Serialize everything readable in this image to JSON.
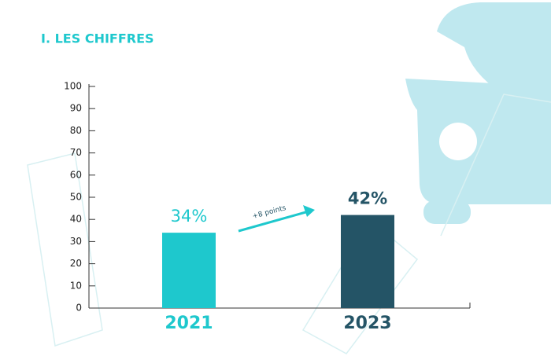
{
  "chart_data": {
    "type": "bar",
    "title": "I. LES CHIFFRES",
    "categories": [
      "2021",
      "2023"
    ],
    "values": [
      34,
      42
    ],
    "value_labels": [
      "34%",
      "42%"
    ],
    "colors": [
      "#1ec8cd",
      "#245466"
    ],
    "annotation": "+8 points",
    "ylim": [
      0,
      100
    ],
    "yticks": [
      0,
      10,
      20,
      30,
      40,
      50,
      60,
      70,
      80,
      90,
      100
    ],
    "grid": false
  }
}
